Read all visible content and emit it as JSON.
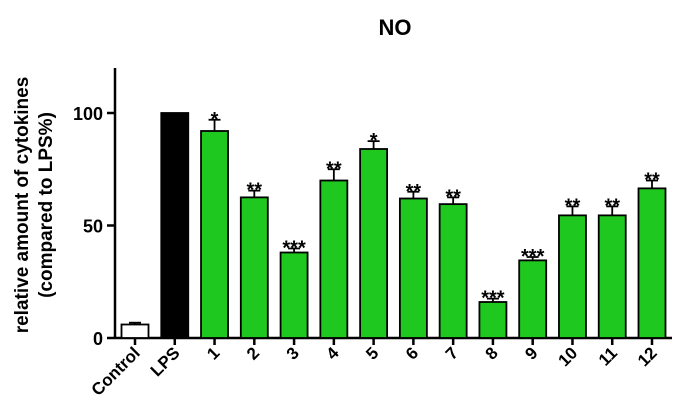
{
  "chart_data": {
    "type": "bar",
    "title": "NO",
    "ylabel_line1": "relative amount of cytokines",
    "ylabel_line2": "(compared to LPS%)",
    "xlabel": "",
    "ylim": [
      0,
      120
    ],
    "yticks": [
      0,
      50,
      100
    ],
    "categories": [
      "Control",
      "LPS",
      "1",
      "2",
      "3",
      "4",
      "5",
      "6",
      "7",
      "8",
      "9",
      "10",
      "11",
      "12"
    ],
    "values": [
      6,
      100,
      92,
      62.5,
      38,
      70,
      84,
      62,
      59.5,
      16,
      34.5,
      54.5,
      54.5,
      66.5
    ],
    "errors": [
      0.8,
      0,
      5,
      3,
      1.8,
      5,
      3.5,
      3,
      3,
      1.5,
      1.5,
      4,
      4,
      3.5
    ],
    "significance": [
      "",
      "",
      "*",
      "**",
      "***",
      "**",
      "*",
      "**",
      "**",
      "***",
      "***",
      "**",
      "**",
      "**"
    ],
    "bar_colors": [
      "#ffffff",
      "#000000",
      "#1ec81e",
      "#1ec81e",
      "#1ec81e",
      "#1ec81e",
      "#1ec81e",
      "#1ec81e",
      "#1ec81e",
      "#1ec81e",
      "#1ec81e",
      "#1ec81e",
      "#1ec81e",
      "#1ec81e"
    ],
    "grid": false,
    "legend": "none"
  }
}
